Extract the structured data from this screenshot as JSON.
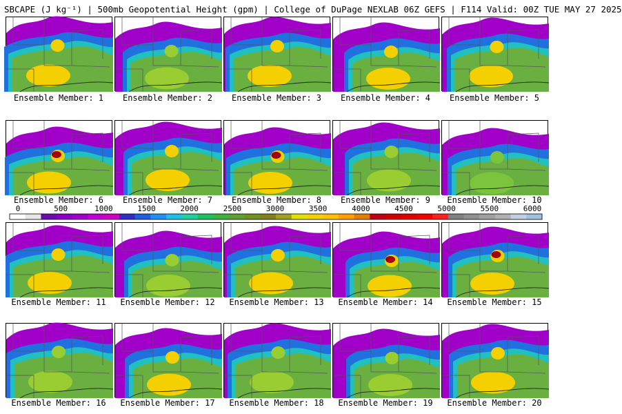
{
  "header": {
    "title": "SBCAPE (J kg⁻¹) | 500mb Geopotential Height (gpm) | College of DuPage NEXLAB 06Z GEFS | F114 Valid: 00Z TUE MAY 27 2025"
  },
  "members": [
    {
      "label": "Ensemble Member: 1",
      "core": "#f5d000",
      "hot": ""
    },
    {
      "label": "Ensemble Member: 2",
      "core": "#9acd32",
      "hot": ""
    },
    {
      "label": "Ensemble Member: 3",
      "core": "#f5d000",
      "hot": ""
    },
    {
      "label": "Ensemble Member: 4",
      "core": "#f5d000",
      "hot": ""
    },
    {
      "label": "Ensemble Member: 5",
      "core": "#f5d000",
      "hot": ""
    },
    {
      "label": "Ensemble Member: 6",
      "core": "#f5d000",
      "hot": "#a00010"
    },
    {
      "label": "Ensemble Member: 7",
      "core": "#f5d000",
      "hot": ""
    },
    {
      "label": "Ensemble Member: 8",
      "core": "#f5d000",
      "hot": "#a00010"
    },
    {
      "label": "Ensemble Member: 9",
      "core": "#9acd32",
      "hot": ""
    },
    {
      "label": "Ensemble Member: 10",
      "core": "#7cc43c",
      "hot": ""
    },
    {
      "label": "Ensemble Member: 11",
      "core": "#f5d000",
      "hot": ""
    },
    {
      "label": "Ensemble Member: 12",
      "core": "#9acd32",
      "hot": ""
    },
    {
      "label": "Ensemble Member: 13",
      "core": "#f5d000",
      "hot": ""
    },
    {
      "label": "Ensemble Member: 14",
      "core": "#f5d000",
      "hot": "#a00010"
    },
    {
      "label": "Ensemble Member: 15",
      "core": "#f5d000",
      "hot": "#a00010"
    },
    {
      "label": "Ensemble Member: 16",
      "core": "#9acd32",
      "hot": ""
    },
    {
      "label": "Ensemble Member: 17",
      "core": "#f5d000",
      "hot": ""
    },
    {
      "label": "Ensemble Member: 18",
      "core": "#9acd32",
      "hot": ""
    },
    {
      "label": "Ensemble Member: 19",
      "core": "#9acd32",
      "hot": ""
    },
    {
      "label": "Ensemble Member: 20",
      "core": "#f5d000",
      "hot": ""
    }
  ],
  "colorbar": {
    "ticks": [
      "0",
      "500",
      "1000",
      "1500",
      "2000",
      "2500",
      "3000",
      "3500",
      "4000",
      "4500",
      "5000",
      "5500",
      "6000"
    ],
    "colors": [
      "#ffffff",
      "#e6e6e6",
      "#6a0dad",
      "#8a00c8",
      "#a000c8",
      "#c000d0",
      "#d000c0",
      "#3030c0",
      "#2060e0",
      "#2090f0",
      "#20c0e0",
      "#20d0a0",
      "#20c060",
      "#40b040",
      "#60a030",
      "#709020",
      "#808020",
      "#a0a020",
      "#e0e000",
      "#f5d000",
      "#ffc000",
      "#ffa000",
      "#e08000",
      "#c00010",
      "#d00000",
      "#e00000",
      "#f00000",
      "#ff2020",
      "#808080",
      "#909090",
      "#a0a0a0",
      "#b0b0b0",
      "#c0d0e0",
      "#a0c0e0"
    ]
  }
}
